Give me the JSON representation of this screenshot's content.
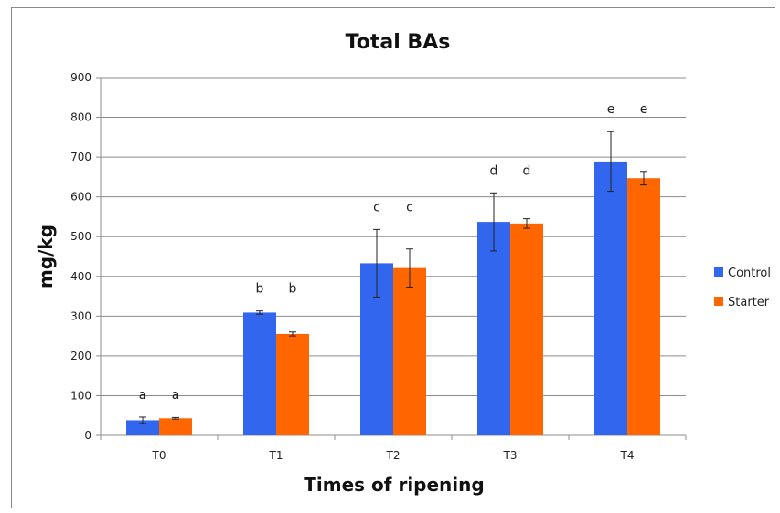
{
  "chart_data": {
    "type": "bar",
    "title": "Total BAs",
    "xlabel": "Times of ripening",
    "ylabel": "mg/kg",
    "ylim": [
      0,
      900
    ],
    "yticks": [
      0,
      100,
      200,
      300,
      400,
      500,
      600,
      700,
      800,
      900
    ],
    "grid": true,
    "legend_position": "right",
    "categories": [
      "T0",
      "T1",
      "T2",
      "T3",
      "T4"
    ],
    "series": [
      {
        "name": "Control",
        "color": "#3366ee",
        "values": [
          38,
          309,
          433,
          537,
          689
        ],
        "errors": [
          8,
          4,
          85,
          73,
          75
        ],
        "labels": [
          "a",
          "b",
          "c",
          "d",
          "e"
        ]
      },
      {
        "name": "Starter",
        "color": "#ff6600",
        "values": [
          43,
          255,
          421,
          533,
          647
        ],
        "errors": [
          2,
          5,
          48,
          12,
          17
        ],
        "labels": [
          "a",
          "b",
          "c",
          "d",
          "e"
        ]
      }
    ]
  }
}
